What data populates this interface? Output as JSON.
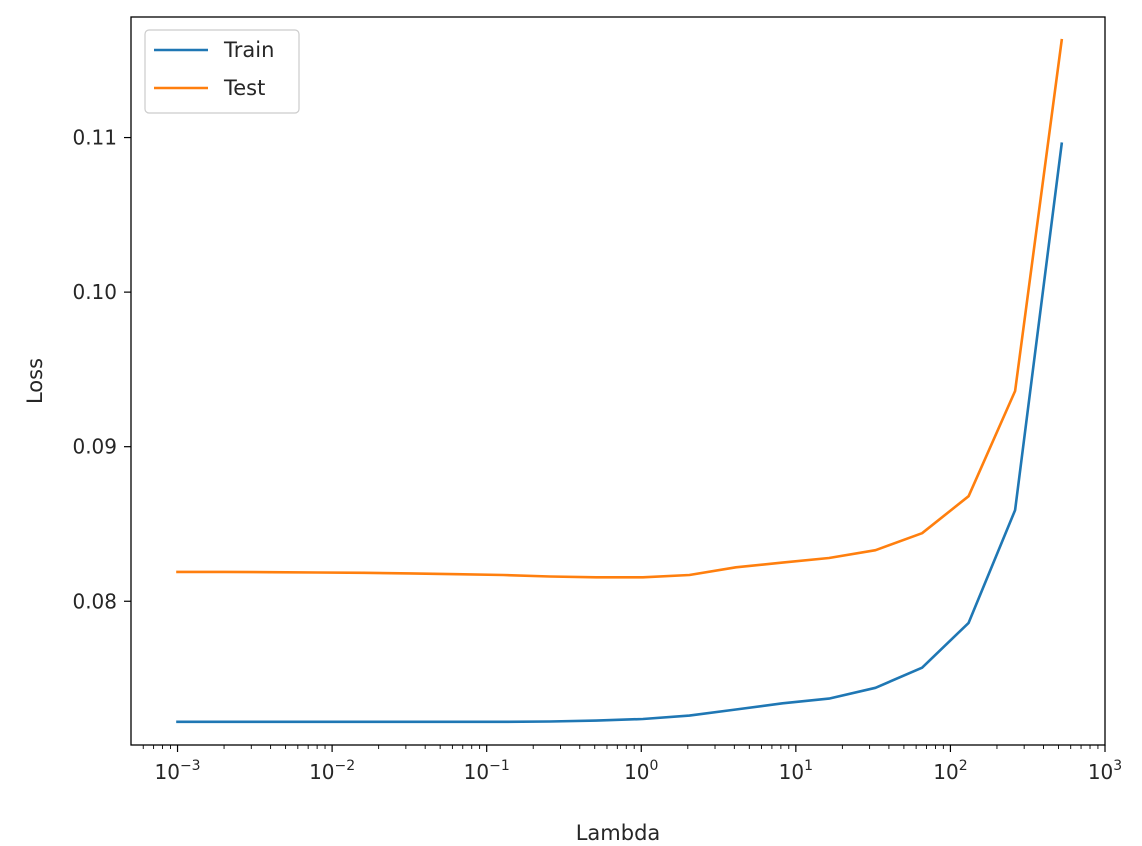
{
  "chart_data": {
    "type": "line",
    "title": "",
    "xlabel": "Lambda",
    "ylabel": "Loss",
    "xscale": "log",
    "xlim": [
      0.0005,
      1000
    ],
    "ylim": [
      0.0707,
      0.1178
    ],
    "x_ticks": [
      {
        "value": 0.001,
        "base": "10",
        "exp": "−3"
      },
      {
        "value": 0.01,
        "base": "10",
        "exp": "−2"
      },
      {
        "value": 0.1,
        "base": "10",
        "exp": "−1"
      },
      {
        "value": 1,
        "base": "10",
        "exp": "0"
      },
      {
        "value": 10,
        "base": "10",
        "exp": "1"
      },
      {
        "value": 100,
        "base": "10",
        "exp": "2"
      },
      {
        "value": 1000,
        "base": "10",
        "exp": "3"
      }
    ],
    "y_ticks": [
      {
        "value": 0.08,
        "label": "0.08"
      },
      {
        "value": 0.09,
        "label": "0.09"
      },
      {
        "value": 0.1,
        "label": "0.10"
      },
      {
        "value": 0.11,
        "label": "0.11"
      }
    ],
    "grid": false,
    "legend_position": "top-left",
    "x": [
      0.001,
      0.002,
      0.004,
      0.008,
      0.016,
      0.032,
      0.064,
      0.128,
      0.256,
      0.512,
      1.024,
      2.048,
      4.096,
      8.192,
      16.384,
      32.768,
      65.536,
      131.072,
      262.144,
      524.288
    ],
    "series": [
      {
        "name": "Train",
        "color": "#1f77b4",
        "values": [
          0.0722,
          0.0722,
          0.0722,
          0.0722,
          0.0722,
          0.0722,
          0.0722,
          0.0722,
          0.07222,
          0.07228,
          0.07238,
          0.0726,
          0.073,
          0.0734,
          0.0737,
          0.0744,
          0.0757,
          0.0786,
          0.0859,
          0.1096
        ]
      },
      {
        "name": "Test",
        "color": "#ff7f0e",
        "values": [
          0.0819,
          0.0819,
          0.08188,
          0.08186,
          0.08184,
          0.0818,
          0.08175,
          0.0817,
          0.0816,
          0.08155,
          0.08155,
          0.0817,
          0.0822,
          0.0825,
          0.0828,
          0.0833,
          0.0844,
          0.0868,
          0.0936,
          0.1163
        ]
      }
    ]
  }
}
